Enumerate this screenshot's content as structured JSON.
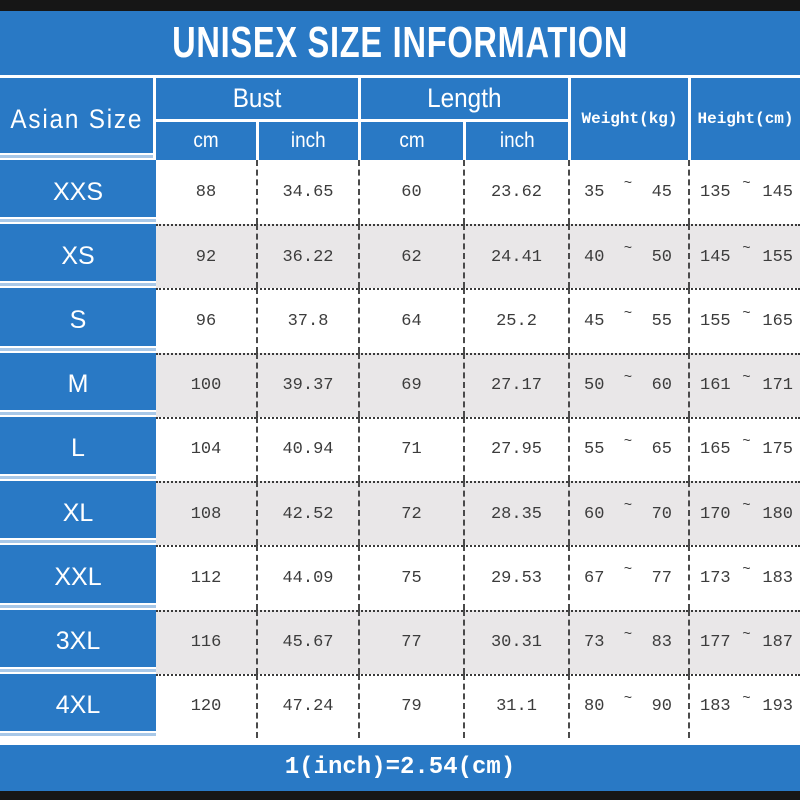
{
  "chart_data": {
    "type": "table",
    "title": "UNISEX SIZE INFORMATION",
    "corner_label": "Asian Size",
    "column_groups": [
      {
        "label": "Bust",
        "sub": [
          "cm",
          "inch"
        ]
      },
      {
        "label": "Length",
        "sub": [
          "cm",
          "inch"
        ]
      }
    ],
    "single_columns": [
      "Weight(kg)",
      "Height(cm)"
    ],
    "range_separator": "~",
    "rows": [
      {
        "size": "XXS",
        "bust_cm": "88",
        "bust_inch": "34.65",
        "length_cm": "60",
        "length_inch": "23.62",
        "weight_min": "35",
        "weight_max": "45",
        "height_min": "135",
        "height_max": "145"
      },
      {
        "size": "XS",
        "bust_cm": "92",
        "bust_inch": "36.22",
        "length_cm": "62",
        "length_inch": "24.41",
        "weight_min": "40",
        "weight_max": "50",
        "height_min": "145",
        "height_max": "155"
      },
      {
        "size": "S",
        "bust_cm": "96",
        "bust_inch": "37.8",
        "length_cm": "64",
        "length_inch": "25.2",
        "weight_min": "45",
        "weight_max": "55",
        "height_min": "155",
        "height_max": "165"
      },
      {
        "size": "M",
        "bust_cm": "100",
        "bust_inch": "39.37",
        "length_cm": "69",
        "length_inch": "27.17",
        "weight_min": "50",
        "weight_max": "60",
        "height_min": "161",
        "height_max": "171"
      },
      {
        "size": "L",
        "bust_cm": "104",
        "bust_inch": "40.94",
        "length_cm": "71",
        "length_inch": "27.95",
        "weight_min": "55",
        "weight_max": "65",
        "height_min": "165",
        "height_max": "175"
      },
      {
        "size": "XL",
        "bust_cm": "108",
        "bust_inch": "42.52",
        "length_cm": "72",
        "length_inch": "28.35",
        "weight_min": "60",
        "weight_max": "70",
        "height_min": "170",
        "height_max": "180"
      },
      {
        "size": "XXL",
        "bust_cm": "112",
        "bust_inch": "44.09",
        "length_cm": "75",
        "length_inch": "29.53",
        "weight_min": "67",
        "weight_max": "77",
        "height_min": "173",
        "height_max": "183"
      },
      {
        "size": "3XL",
        "bust_cm": "116",
        "bust_inch": "45.67",
        "length_cm": "77",
        "length_inch": "30.31",
        "weight_min": "73",
        "weight_max": "83",
        "height_min": "177",
        "height_max": "187"
      },
      {
        "size": "4XL",
        "bust_cm": "120",
        "bust_inch": "47.24",
        "length_cm": "79",
        "length_inch": "31.1",
        "weight_min": "80",
        "weight_max": "90",
        "height_min": "183",
        "height_max": "193"
      }
    ],
    "footer_note": "1(inch)=2.54(cm)"
  },
  "colors": {
    "primary_blue": "#2979c5",
    "row_alt_gray": "#e9e7e8",
    "text_dark": "#3c3c3c",
    "border_black": "#161616",
    "separator_pale_blue": "#a8c8e8"
  }
}
